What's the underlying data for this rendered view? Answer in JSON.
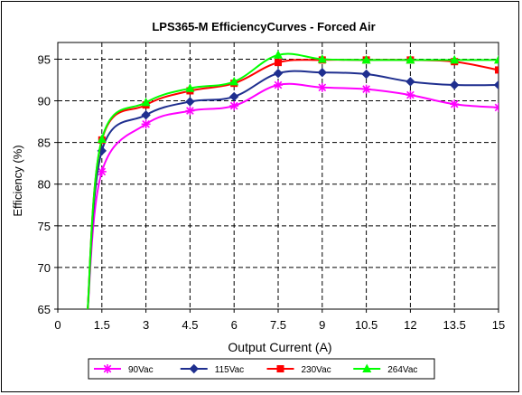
{
  "chart_data": {
    "type": "line",
    "title": "LPS365-M EfficiencyCurves - Forced Air",
    "xlabel": "Output Current (A)",
    "ylabel": "Efficiency  (%)",
    "xlim": [
      0,
      15
    ],
    "ylim": [
      65,
      97
    ],
    "xticks": [
      0,
      1.5,
      3,
      4.5,
      6,
      7.5,
      9,
      10.5,
      12,
      13.5,
      15
    ],
    "xtick_labels": [
      "0",
      "1.5",
      "3",
      "4.5",
      "6",
      "7.5",
      "9",
      "10.5",
      "12",
      "13.5",
      "15"
    ],
    "yticks": [
      65,
      70,
      75,
      80,
      85,
      90,
      95
    ],
    "ytick_labels": [
      "65",
      "70",
      "75",
      "80",
      "85",
      "90",
      "95"
    ],
    "grid": true,
    "legend_position": "bottom",
    "series": [
      {
        "name": "90Vac",
        "color": "#ff00ff",
        "marker": "asterisk",
        "values": [
          [
            1.0,
            64
          ],
          [
            1.5,
            81.5
          ],
          [
            3,
            87.2
          ],
          [
            4.5,
            88.8
          ],
          [
            6,
            89.4
          ],
          [
            7.5,
            91.9
          ],
          [
            9,
            91.6
          ],
          [
            10.5,
            91.4
          ],
          [
            12,
            90.7
          ],
          [
            13.5,
            89.6
          ],
          [
            15,
            89.2
          ]
        ]
      },
      {
        "name": "115Vac",
        "color": "#1f2f8f",
        "marker": "diamond",
        "values": [
          [
            1.0,
            64
          ],
          [
            1.5,
            84.0
          ],
          [
            3,
            88.3
          ],
          [
            4.5,
            89.9
          ],
          [
            6,
            90.5
          ],
          [
            7.5,
            93.3
          ],
          [
            9,
            93.4
          ],
          [
            10.5,
            93.2
          ],
          [
            12,
            92.3
          ],
          [
            13.5,
            91.9
          ],
          [
            15,
            91.9
          ]
        ]
      },
      {
        "name": "230Vac",
        "color": "#ff0000",
        "marker": "square",
        "values": [
          [
            1.0,
            64
          ],
          [
            1.5,
            85.3
          ],
          [
            3,
            89.5
          ],
          [
            4.5,
            91.2
          ],
          [
            6,
            92.1
          ],
          [
            7.5,
            94.6
          ],
          [
            9,
            94.9
          ],
          [
            10.5,
            94.9
          ],
          [
            12,
            94.9
          ],
          [
            13.5,
            94.7
          ],
          [
            15,
            93.7
          ]
        ]
      },
      {
        "name": "264Vac",
        "color": "#00ff00",
        "marker": "triangle",
        "values": [
          [
            1.0,
            64
          ],
          [
            1.5,
            85.4
          ],
          [
            3,
            89.8
          ],
          [
            4.5,
            91.5
          ],
          [
            6,
            92.3
          ],
          [
            7.5,
            95.5
          ],
          [
            9,
            95.0
          ],
          [
            10.5,
            94.9
          ],
          [
            12,
            94.9
          ],
          [
            13.5,
            94.9
          ],
          [
            15,
            94.9
          ]
        ]
      }
    ]
  }
}
